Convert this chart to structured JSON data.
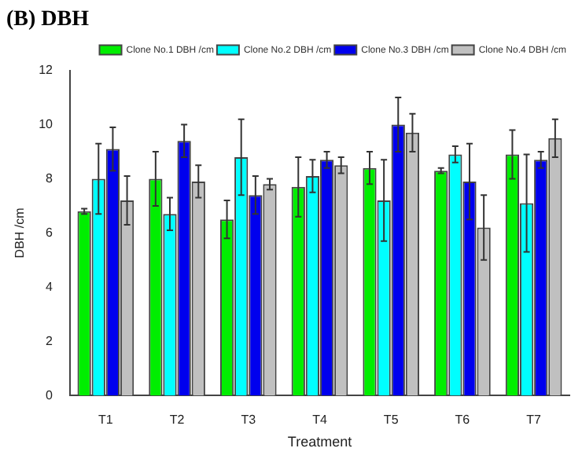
{
  "chart_data": {
    "type": "bar",
    "title": "(B) DBH",
    "xlabel": "Treatment",
    "ylabel": "DBH /cm",
    "categories": [
      "T1",
      "T2",
      "T3",
      "T4",
      "T5",
      "T6",
      "T7"
    ],
    "series": [
      {
        "name": "Clone No.1 DBH /cm",
        "color": "#00ee00",
        "values": [
          6.8,
          8.0,
          6.5,
          7.7,
          8.4,
          8.3,
          8.9
        ],
        "errors": [
          0.1,
          1.0,
          0.7,
          1.1,
          0.6,
          0.1,
          0.9
        ]
      },
      {
        "name": "Clone No.2 DBH /cm",
        "color": "#00ffff",
        "values": [
          8.0,
          6.7,
          8.8,
          8.1,
          7.2,
          8.9,
          7.1
        ],
        "errors": [
          1.3,
          0.6,
          1.4,
          0.6,
          1.5,
          0.3,
          1.8
        ]
      },
      {
        "name": "Clone No.3 DBH /cm",
        "color": "#0000ee",
        "values": [
          9.1,
          9.4,
          7.4,
          8.7,
          10.0,
          7.9,
          8.7
        ],
        "errors": [
          0.8,
          0.6,
          0.7,
          0.3,
          1.0,
          1.4,
          0.3
        ]
      },
      {
        "name": "Clone No.4 DBH /cm",
        "color": "#c0c0c0",
        "values": [
          7.2,
          7.9,
          7.8,
          8.5,
          9.7,
          6.2,
          9.5
        ],
        "errors": [
          0.9,
          0.6,
          0.2,
          0.3,
          0.7,
          1.2,
          0.7
        ]
      }
    ],
    "ylim": [
      0,
      12
    ],
    "yticks": [
      0,
      2,
      4,
      6,
      8,
      10,
      12
    ],
    "grid": false,
    "legend": "top right"
  }
}
